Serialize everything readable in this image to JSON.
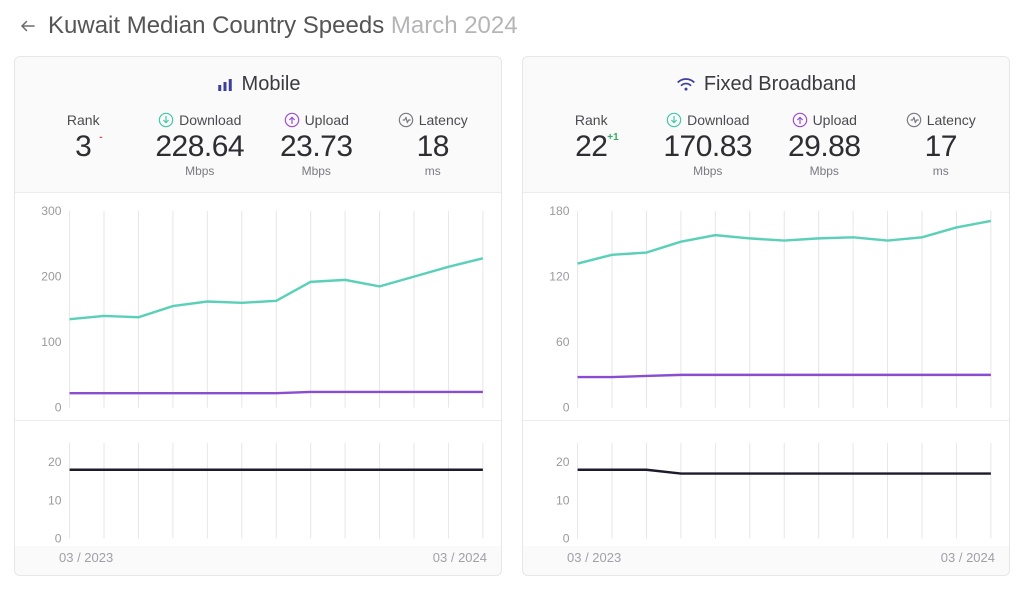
{
  "header": {
    "title_prefix": "Kuwait Median Country Speeds",
    "date": "March 2024"
  },
  "colors": {
    "download_line": "#5bd0b8",
    "upload_line": "#8a4dd0",
    "latency_line": "#1b1b2b",
    "grid": "#e6e6ea",
    "axis_text": "#9a9aa0",
    "panel_bg": "#fafafb",
    "chart_bg": "#ffffff",
    "icon_accent": "#3e3e9c",
    "download_icon": "#46c7a8",
    "upload_icon": "#9b4dd6",
    "latency_icon": "#7a7a80",
    "delta_minus": "#d64b4b",
    "delta_plus": "#2fae63"
  },
  "panels": [
    {
      "key": "mobile",
      "title": "Mobile",
      "icon": "bars-icon",
      "metrics": {
        "rank": {
          "label": "Rank",
          "value": "3",
          "unit": "",
          "delta": "-",
          "delta_sign": "minus"
        },
        "download": {
          "label": "Download",
          "value": "228.64",
          "unit": "Mbps"
        },
        "upload": {
          "label": "Upload",
          "value": "23.73",
          "unit": "Mbps"
        },
        "latency": {
          "label": "Latency",
          "value": "18",
          "unit": "ms"
        }
      },
      "speed_chart": {
        "type": "line",
        "ylim": [
          0,
          300
        ],
        "yticks": [
          0,
          100,
          200,
          300
        ],
        "x_count": 13,
        "x_start_label": "03 / 2023",
        "x_end_label": "03 / 2024",
        "series": {
          "download": [
            135,
            140,
            138,
            155,
            162,
            160,
            163,
            192,
            195,
            185,
            200,
            215,
            228
          ],
          "upload": [
            22,
            22,
            22,
            22,
            22,
            22,
            22,
            24,
            24,
            24,
            24,
            24,
            24
          ]
        }
      },
      "latency_chart": {
        "type": "line",
        "ylim": [
          0,
          25
        ],
        "yticks": [
          0,
          10,
          20
        ],
        "x_count": 13,
        "series": {
          "latency": [
            18,
            18,
            18,
            18,
            18,
            18,
            18,
            18,
            18,
            18,
            18,
            18,
            18
          ]
        }
      }
    },
    {
      "key": "fixed",
      "title": "Fixed Broadband",
      "icon": "wifi-icon",
      "metrics": {
        "rank": {
          "label": "Rank",
          "value": "22",
          "unit": "",
          "delta": "+1",
          "delta_sign": "plus"
        },
        "download": {
          "label": "Download",
          "value": "170.83",
          "unit": "Mbps"
        },
        "upload": {
          "label": "Upload",
          "value": "29.88",
          "unit": "Mbps"
        },
        "latency": {
          "label": "Latency",
          "value": "17",
          "unit": "ms"
        }
      },
      "speed_chart": {
        "type": "line",
        "ylim": [
          0,
          180
        ],
        "yticks": [
          0,
          60,
          120,
          180
        ],
        "x_count": 13,
        "x_start_label": "03 / 2023",
        "x_end_label": "03 / 2024",
        "series": {
          "download": [
            132,
            140,
            142,
            152,
            158,
            155,
            153,
            155,
            156,
            153,
            156,
            165,
            171
          ],
          "upload": [
            28,
            28,
            29,
            30,
            30,
            30,
            30,
            30,
            30,
            30,
            30,
            30,
            30
          ]
        }
      },
      "latency_chart": {
        "type": "line",
        "ylim": [
          0,
          25
        ],
        "yticks": [
          0,
          10,
          20
        ],
        "x_count": 13,
        "series": {
          "latency": [
            18,
            18,
            18,
            17,
            17,
            17,
            17,
            17,
            17,
            17,
            17,
            17,
            17
          ]
        }
      }
    }
  ]
}
